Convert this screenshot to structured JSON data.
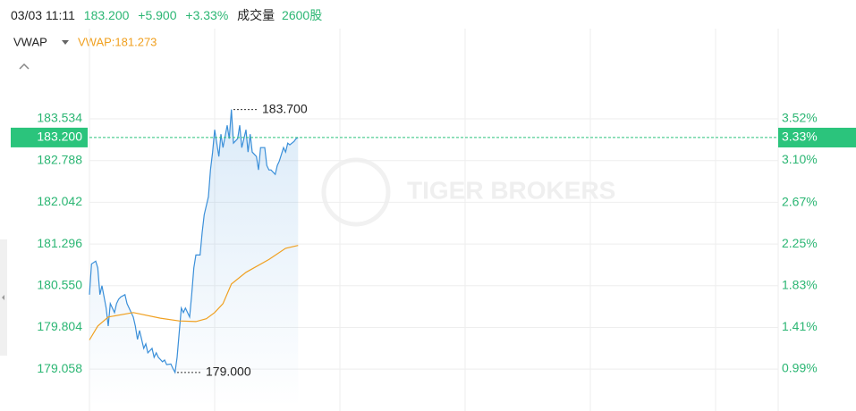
{
  "header": {
    "time": "03/03 11:11",
    "price": "183.200",
    "change": "+5.900",
    "change_pct": "+3.33%",
    "volume_label": "成交量",
    "volume": "2600股"
  },
  "chart_data": {
    "type": "line",
    "legend": "VWAP",
    "legend_value": "VWAP:181.273",
    "watermark": "TIGER BROKERS",
    "xlim": [
      0,
      330
    ],
    "xticks": [
      60,
      120,
      180,
      240,
      300
    ],
    "ylim": [
      178.39,
      185.02
    ],
    "yticks": [
      183.534,
      182.788,
      182.042,
      181.296,
      {
        "value": 180.55,
        "label": "180.550"
      },
      179.804,
      179.058
    ],
    "y2lim": [
      0.61,
      4.36
    ],
    "y2ticks": [
      {
        "value": 3.52,
        "label": "3.52%"
      },
      {
        "value": 3.1,
        "label": "3.10%"
      },
      {
        "value": 2.67,
        "label": "2.67%"
      },
      {
        "value": 2.25,
        "label": "2.25%"
      },
      {
        "value": 1.83,
        "label": "1.83%"
      },
      {
        "value": 1.41,
        "label": "1.41%"
      },
      {
        "value": 0.99,
        "label": "0.99%"
      }
    ],
    "series": [
      {
        "color": "#3a8fd9",
        "x": [
          0,
          1,
          3,
          4,
          5,
          6,
          8,
          9,
          10,
          12,
          13,
          14,
          15,
          17,
          18,
          19,
          21,
          22,
          23,
          24,
          26,
          27,
          28,
          30,
          31,
          32,
          33,
          35,
          36,
          37,
          39,
          40,
          41,
          42,
          44,
          45,
          46,
          48,
          49,
          50,
          51,
          53,
          54,
          55,
          57,
          58,
          59,
          60,
          62,
          63,
          64,
          66,
          67,
          68,
          69,
          71,
          72,
          73,
          75,
          76,
          77,
          78,
          80,
          81,
          82,
          84,
          85,
          86,
          87,
          89,
          90,
          91,
          93,
          94,
          95,
          96,
          98,
          99,
          100
        ],
        "values": [
          180.39,
          180.94,
          180.99,
          180.87,
          180.39,
          180.55,
          180.15,
          179.83,
          180.23,
          180.07,
          180.23,
          180.31,
          180.35,
          180.39,
          180.23,
          180.15,
          179.99,
          179.83,
          179.59,
          179.75,
          179.43,
          179.51,
          179.35,
          179.43,
          179.27,
          179.35,
          179.27,
          179.19,
          179.22,
          179.14,
          179.15,
          179.07,
          179.0,
          179.27,
          180.15,
          180.07,
          180.15,
          179.99,
          180.39,
          180.87,
          181.1,
          181.1,
          181.5,
          181.82,
          182.14,
          182.62,
          182.94,
          183.34,
          182.86,
          183.26,
          183.02,
          183.42,
          183.18,
          183.7,
          183.1,
          183.18,
          183.42,
          183.02,
          183.34,
          182.94,
          183.26,
          182.94,
          182.86,
          182.62,
          183.02,
          183.02,
          182.7,
          182.62,
          182.62,
          182.54,
          182.7,
          182.78,
          183.02,
          182.94,
          183.1,
          183.07,
          183.13,
          183.18,
          183.2
        ]
      },
      {
        "name": "VWAP",
        "color": "#f0a020",
        "x": [
          0,
          4,
          9,
          21,
          34,
          43,
          51,
          56,
          60,
          64,
          68,
          75,
          86,
          94,
          100
        ],
        "values": [
          179.58,
          179.83,
          179.99,
          180.07,
          179.97,
          179.92,
          179.91,
          179.96,
          180.07,
          180.23,
          180.58,
          180.79,
          181.02,
          181.22,
          181.27
        ]
      }
    ],
    "annotations": [
      {
        "x": 69,
        "value": 183.7,
        "label": "183.700"
      },
      {
        "x": 42,
        "value": 179.0,
        "label": "179.000"
      }
    ],
    "current": {
      "value": 183.2,
      "label": "183.200",
      "percent": {
        "value": 3.33,
        "label": "3.33%"
      },
      "color": "#2bc47c"
    },
    "grid": true
  }
}
